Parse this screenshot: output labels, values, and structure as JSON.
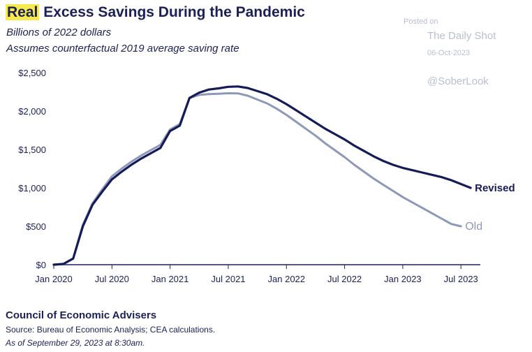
{
  "header": {
    "title_highlight": "Real",
    "title_rest": " Excess Savings During the Pandemic",
    "subtitle1": "Billions of 2022 dollars",
    "subtitle2": "Assumes counterfactual 2019 average saving rate"
  },
  "watermark": {
    "posted_on": "Posted on",
    "source": "The Daily Shot",
    "date": "06-Oct-2023",
    "handle": "@SoberLook"
  },
  "footer": {
    "org": "Council of Economic Advisers",
    "source": "Source: Bureau of Economic Analysis; CEA calculations.",
    "asof": "As of September 29, 2023 at 8:30am."
  },
  "colors": {
    "revised": "#151b57",
    "old": "#8e98b8",
    "text": "#1b2156"
  },
  "chart_data": {
    "type": "line",
    "title": "Real Excess Savings During the Pandemic",
    "ylabel": "Billions of 2022 dollars",
    "xlabel": "",
    "ylim": [
      0,
      2500
    ],
    "yticks": [
      0,
      500,
      1000,
      1500,
      2000,
      2500
    ],
    "ytick_labels": [
      "$0",
      "$500",
      "$1,000",
      "$1,500",
      "$2,000",
      "$2,500"
    ],
    "xticks": [
      0,
      6,
      12,
      18,
      24,
      30,
      36,
      42
    ],
    "xtick_labels": [
      "Jan 2020",
      "Jul 2020",
      "Jan 2021",
      "Jul 2021",
      "Jan 2022",
      "Jul 2022",
      "Jan 2023",
      "Jul 2023"
    ],
    "x_unit": "months since Jan 2020",
    "series": [
      {
        "name": "Revised",
        "x": [
          0,
          1,
          2,
          3,
          4,
          5,
          6,
          7,
          8,
          9,
          10,
          11,
          12,
          13,
          14,
          15,
          16,
          17,
          18,
          19,
          20,
          21,
          22,
          23,
          24,
          25,
          26,
          27,
          28,
          29,
          30,
          31,
          32,
          33,
          34,
          35,
          36,
          37,
          38,
          39,
          40,
          41,
          42,
          43
        ],
        "values": [
          0,
          10,
          80,
          500,
          780,
          950,
          1110,
          1210,
          1300,
          1380,
          1450,
          1520,
          1740,
          1810,
          2170,
          2240,
          2280,
          2295,
          2315,
          2320,
          2300,
          2260,
          2220,
          2160,
          2090,
          2010,
          1930,
          1850,
          1770,
          1700,
          1630,
          1550,
          1480,
          1410,
          1350,
          1300,
          1260,
          1230,
          1200,
          1170,
          1140,
          1100,
          1050,
          1000
        ]
      },
      {
        "name": "Old",
        "x": [
          0,
          1,
          2,
          3,
          4,
          5,
          6,
          7,
          8,
          9,
          10,
          11,
          12,
          13,
          14,
          15,
          16,
          17,
          18,
          19,
          20,
          21,
          22,
          23,
          24,
          25,
          26,
          27,
          28,
          29,
          30,
          31,
          32,
          33,
          34,
          35,
          36,
          37,
          38,
          39,
          40,
          41,
          42
        ],
        "values": [
          0,
          10,
          80,
          520,
          800,
          980,
          1150,
          1250,
          1340,
          1420,
          1490,
          1560,
          1760,
          1830,
          2170,
          2210,
          2220,
          2225,
          2232,
          2230,
          2200,
          2150,
          2100,
          2030,
          1950,
          1860,
          1770,
          1680,
          1580,
          1490,
          1400,
          1300,
          1210,
          1120,
          1040,
          960,
          880,
          810,
          740,
          670,
          600,
          530,
          500
        ]
      }
    ]
  }
}
